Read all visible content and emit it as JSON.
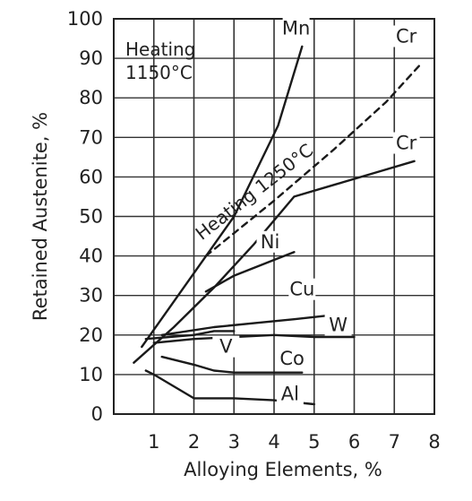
{
  "chart_data": {
    "type": "line",
    "xlabel": "Alloying Elements, %",
    "ylabel": "Retained Austenite, %",
    "xlim": [
      0,
      8
    ],
    "ylim": [
      0,
      100
    ],
    "xticks": [
      "1",
      "2",
      "3",
      "4",
      "5",
      "6",
      "7",
      "8"
    ],
    "yticks": [
      "0",
      "10",
      "20",
      "30",
      "40",
      "50",
      "60",
      "70",
      "80",
      "90",
      "100"
    ],
    "grid": true,
    "annotations": {
      "heating_1150_line1": "Heating",
      "heating_1150_line2": "1150°C",
      "heating_1250": "Heating 1250°C"
    },
    "series": [
      {
        "name": "Mn",
        "dashed": false,
        "x": [
          0.7,
          3.0,
          4.1,
          4.7
        ],
        "y": [
          17,
          50,
          73,
          93
        ]
      },
      {
        "name": "Cr",
        "dashed": true,
        "x": [
          2.3,
          4.0,
          5.5,
          6.8,
          7.7
        ],
        "y": [
          40,
          54,
          67,
          79,
          89
        ]
      },
      {
        "name": "Cr",
        "dashed": false,
        "x": [
          0.5,
          1.5,
          2.5,
          3.5,
          4.5,
          5.5,
          6.5,
          7.5
        ],
        "y": [
          13,
          22,
          32,
          43,
          55,
          58,
          61,
          64
        ]
      },
      {
        "name": "Ni",
        "dashed": false,
        "x": [
          2.3,
          3.0,
          4.0,
          4.5
        ],
        "y": [
          31,
          35,
          39,
          41
        ]
      },
      {
        "name": "Cu",
        "dashed": false,
        "x": [
          1.2,
          2.5,
          3.5,
          4.5,
          5.4
        ],
        "y": [
          20,
          22,
          23,
          24,
          25
        ]
      },
      {
        "name": "W",
        "dashed": false,
        "x": [
          1.0,
          2.0,
          3.0,
          4.0,
          5.0,
          6.0
        ],
        "y": [
          18,
          19,
          19.5,
          20,
          19.5,
          19.5
        ]
      },
      {
        "name": "V",
        "dashed": false,
        "x": [
          0.8,
          2.0,
          2.5,
          3.0
        ],
        "y": [
          19,
          20,
          21,
          21
        ]
      },
      {
        "name": "Co",
        "dashed": false,
        "x": [
          1.2,
          2.0,
          2.5,
          3.0,
          4.0,
          4.7
        ],
        "y": [
          14.5,
          12.5,
          11,
          10.5,
          10.5,
          10.5
        ]
      },
      {
        "name": "Al",
        "dashed": false,
        "x": [
          0.8,
          1.0,
          2.0,
          3.0,
          4.0,
          5.0
        ],
        "y": [
          11,
          10,
          4,
          4,
          3.5,
          2.5
        ]
      }
    ],
    "series_labels": [
      {
        "text": "Mn",
        "x": 4.55,
        "y": 96
      },
      {
        "text": "Cr",
        "x": 7.3,
        "y": 94
      },
      {
        "text": "Cr",
        "x": 7.3,
        "y": 67
      },
      {
        "text": "Ni",
        "x": 3.9,
        "y": 42
      },
      {
        "text": "Cu",
        "x": 4.7,
        "y": 30
      },
      {
        "text": "W",
        "x": 5.6,
        "y": 21
      },
      {
        "text": "V",
        "x": 2.8,
        "y": 15.5
      },
      {
        "text": "Co",
        "x": 4.45,
        "y": 12.5
      },
      {
        "text": "Al",
        "x": 4.4,
        "y": 3.5
      }
    ]
  }
}
